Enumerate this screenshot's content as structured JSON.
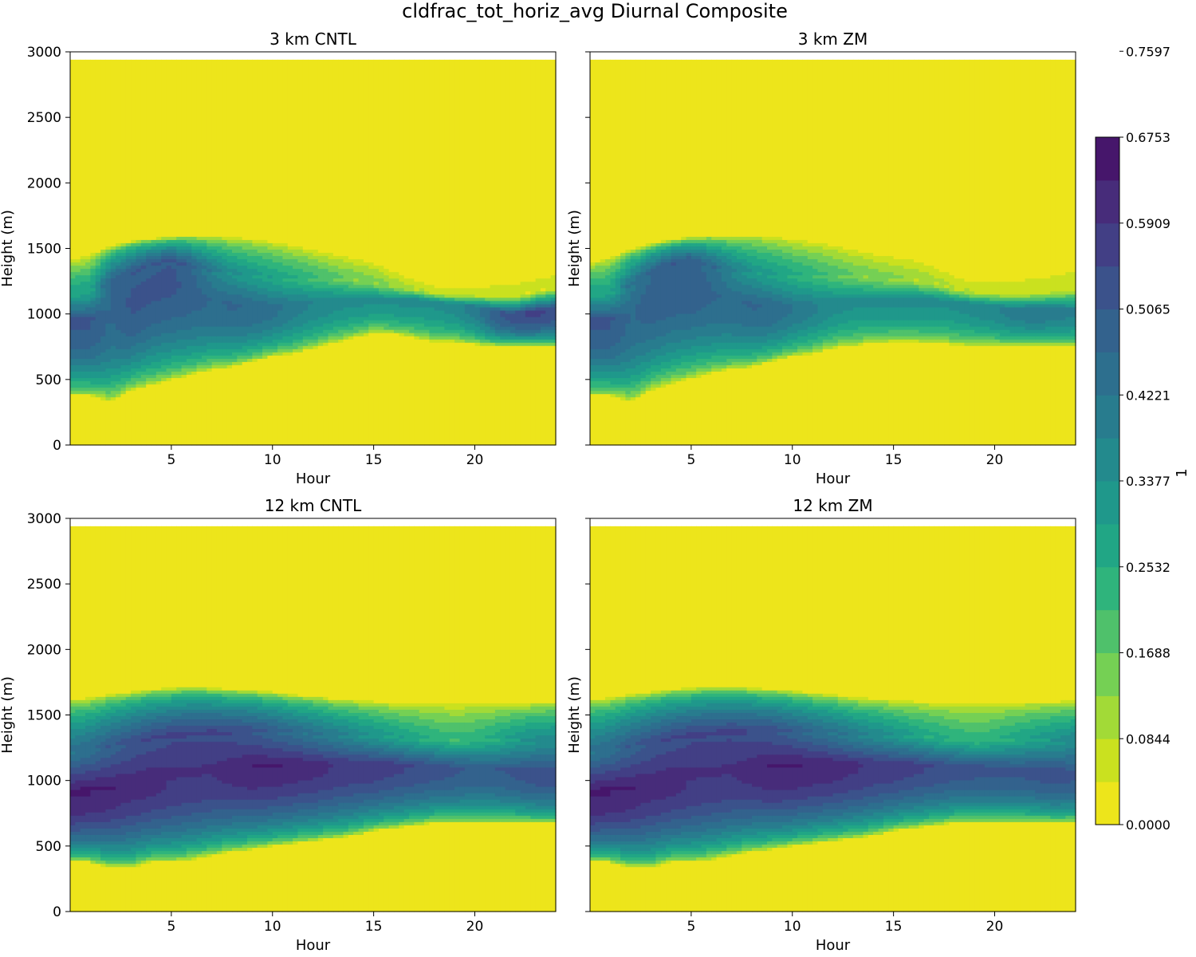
{
  "figure_title": "cldfrac_tot_horiz_avg Diurnal Composite",
  "colorbar": {
    "label": "1",
    "tick_labels": [
      "0.0000",
      "0.0844",
      "0.1688",
      "0.2532",
      "0.3377",
      "0.4221",
      "0.5065",
      "0.5909",
      "0.6753",
      "0.7597"
    ],
    "colors": [
      "#ede51b",
      "#cae11f",
      "#a2da37",
      "#75d054",
      "#4fc16b",
      "#2fb47c",
      "#21a685",
      "#1f988b",
      "#238a8d",
      "#287c8e",
      "#2d6f8e",
      "#33628d",
      "#3b528b",
      "#423f85",
      "#472c7a",
      "#46166b"
    ]
  },
  "chart_data": [
    {
      "type": "heatmap",
      "title": "3 km CNTL",
      "xlabel": "Hour",
      "ylabel": "Height (m)",
      "xlim": [
        0,
        24
      ],
      "ylim": [
        0,
        3000
      ],
      "xticks": [
        5,
        10,
        15,
        20
      ],
      "yticks": [
        0,
        500,
        1000,
        1500,
        2000,
        2500,
        3000
      ],
      "data_top": 2940,
      "value_range": [
        0,
        0.8
      ],
      "layers": [
        {
          "name": "lower_cloud",
          "base": [
            380,
            380,
            340,
            420,
            460,
            500,
            540,
            580,
            600,
            640,
            680,
            700,
            740,
            780,
            820,
            860,
            850,
            820,
            790,
            790,
            770,
            760,
            760,
            760,
            760
          ],
          "top": [
            1410,
            1460,
            1520,
            1560,
            1580,
            1590,
            1600,
            1600,
            1590,
            1580,
            1560,
            1530,
            1500,
            1470,
            1440,
            1400,
            1340,
            1290,
            1250,
            1250,
            1270,
            1300,
            1330,
            1370,
            1410
          ],
          "peak_h": [
            960,
            960,
            980,
            1080,
            1200,
            1240,
            1160,
            1100,
            1080,
            1060,
            1060,
            1080,
            1100,
            1120,
            1120,
            1120,
            1120,
            1120,
            1100,
            1080,
            1060,
            1020,
            1000,
            1020,
            1040
          ],
          "peak_v": [
            0.62,
            0.62,
            0.55,
            0.62,
            0.62,
            0.62,
            0.58,
            0.55,
            0.56,
            0.55,
            0.52,
            0.48,
            0.44,
            0.42,
            0.4,
            0.4,
            0.4,
            0.4,
            0.4,
            0.42,
            0.48,
            0.6,
            0.66,
            0.68,
            0.66
          ],
          "upper": [
            0.3,
            0.3,
            0.55,
            0.58,
            0.58,
            0.6,
            0.55,
            0.45,
            0.38,
            0.34,
            0.3,
            0.26,
            0.22,
            0.18,
            0.15,
            0.14,
            0.1,
            0.06,
            0.04,
            0.03,
            0.03,
            0.03,
            0.03,
            0.03,
            0.03
          ]
        }
      ]
    },
    {
      "type": "heatmap",
      "title": "3 km ZM",
      "xlabel": "Hour",
      "ylabel": "Height (m)",
      "xlim": [
        0,
        24
      ],
      "ylim": [
        0,
        3000
      ],
      "xticks": [
        5,
        10,
        15,
        20
      ],
      "yticks": [
        0,
        500,
        1000,
        1500,
        2000,
        2500,
        3000
      ],
      "data_top": 2940,
      "value_range": [
        0,
        0.8
      ],
      "layers": [
        {
          "name": "lower_cloud",
          "base": [
            380,
            380,
            340,
            420,
            470,
            510,
            550,
            580,
            600,
            640,
            680,
            700,
            740,
            760,
            780,
            790,
            790,
            780,
            770,
            760,
            760,
            760,
            760,
            760,
            760
          ],
          "top": [
            1400,
            1440,
            1500,
            1540,
            1570,
            1590,
            1600,
            1600,
            1610,
            1600,
            1580,
            1560,
            1540,
            1510,
            1480,
            1460,
            1440,
            1400,
            1320,
            1290,
            1300,
            1310,
            1330,
            1360,
            1400
          ],
          "peak_h": [
            960,
            960,
            980,
            1100,
            1220,
            1240,
            1160,
            1100,
            1080,
            1060,
            1060,
            1080,
            1100,
            1120,
            1120,
            1120,
            1120,
            1120,
            1100,
            1080,
            1060,
            1040,
            1040,
            1040,
            1040
          ],
          "peak_v": [
            0.62,
            0.62,
            0.55,
            0.58,
            0.6,
            0.6,
            0.56,
            0.54,
            0.56,
            0.55,
            0.5,
            0.46,
            0.42,
            0.4,
            0.4,
            0.4,
            0.4,
            0.4,
            0.4,
            0.42,
            0.44,
            0.48,
            0.5,
            0.48,
            0.46
          ],
          "upper": [
            0.3,
            0.3,
            0.48,
            0.55,
            0.57,
            0.57,
            0.52,
            0.44,
            0.36,
            0.32,
            0.28,
            0.24,
            0.2,
            0.16,
            0.14,
            0.12,
            0.1,
            0.08,
            0.06,
            0.05,
            0.05,
            0.05,
            0.05,
            0.05,
            0.05
          ]
        }
      ]
    },
    {
      "type": "heatmap",
      "title": "12 km CNTL",
      "xlabel": "Hour",
      "ylabel": "Height (m)",
      "xlim": [
        0,
        24
      ],
      "ylim": [
        0,
        3000
      ],
      "xticks": [
        5,
        10,
        15,
        20
      ],
      "yticks": [
        0,
        500,
        1000,
        1500,
        2000,
        2500,
        3000
      ],
      "data_top": 2940,
      "value_range": [
        0,
        0.8
      ],
      "layers": [
        {
          "name": "lower_cloud",
          "base": [
            380,
            380,
            340,
            340,
            380,
            380,
            400,
            430,
            460,
            480,
            500,
            520,
            540,
            560,
            580,
            620,
            640,
            660,
            680,
            680,
            680,
            680,
            680,
            680,
            680
          ],
          "top": [
            1620,
            1640,
            1660,
            1680,
            1700,
            1710,
            1720,
            1710,
            1700,
            1690,
            1680,
            1660,
            1650,
            1630,
            1620,
            1610,
            1600,
            1600,
            1600,
            1600,
            1600,
            1600,
            1600,
            1600,
            1600
          ],
          "peak_h": [
            900,
            920,
            940,
            960,
            990,
            1010,
            1030,
            1050,
            1080,
            1100,
            1110,
            1120,
            1120,
            1120,
            1120,
            1120,
            1120,
            1110,
            1110,
            1100,
            1100,
            1090,
            1080,
            1060,
            1060
          ],
          "peak_v": [
            0.78,
            0.78,
            0.76,
            0.74,
            0.74,
            0.72,
            0.72,
            0.72,
            0.74,
            0.76,
            0.76,
            0.75,
            0.74,
            0.72,
            0.7,
            0.7,
            0.68,
            0.66,
            0.64,
            0.62,
            0.6,
            0.6,
            0.62,
            0.64,
            0.64
          ],
          "upper": [
            0.48,
            0.5,
            0.56,
            0.6,
            0.62,
            0.64,
            0.64,
            0.64,
            0.62,
            0.6,
            0.56,
            0.52,
            0.48,
            0.44,
            0.4,
            0.36,
            0.32,
            0.28,
            0.24,
            0.22,
            0.24,
            0.28,
            0.34,
            0.38,
            0.4
          ]
        }
      ]
    },
    {
      "type": "heatmap",
      "title": "12 km ZM",
      "xlabel": "Hour",
      "ylabel": "Height (m)",
      "xlim": [
        0,
        24
      ],
      "ylim": [
        0,
        3000
      ],
      "xticks": [
        5,
        10,
        15,
        20
      ],
      "yticks": [
        0,
        500,
        1000,
        1500,
        2000,
        2500,
        3000
      ],
      "data_top": 2940,
      "value_range": [
        0,
        0.8
      ],
      "layers": [
        {
          "name": "lower_cloud",
          "base": [
            380,
            380,
            340,
            340,
            380,
            380,
            400,
            430,
            460,
            480,
            500,
            520,
            540,
            560,
            580,
            620,
            640,
            660,
            680,
            680,
            680,
            680,
            680,
            680,
            680
          ],
          "top": [
            1620,
            1640,
            1660,
            1680,
            1700,
            1710,
            1720,
            1720,
            1710,
            1700,
            1690,
            1670,
            1660,
            1640,
            1630,
            1620,
            1610,
            1610,
            1610,
            1610,
            1610,
            1610,
            1610,
            1610,
            1610
          ],
          "peak_h": [
            900,
            920,
            940,
            960,
            990,
            1010,
            1030,
            1050,
            1080,
            1100,
            1110,
            1120,
            1120,
            1120,
            1120,
            1120,
            1120,
            1110,
            1110,
            1100,
            1100,
            1090,
            1080,
            1060,
            1060
          ],
          "peak_v": [
            0.78,
            0.78,
            0.76,
            0.74,
            0.74,
            0.72,
            0.72,
            0.72,
            0.74,
            0.77,
            0.77,
            0.76,
            0.75,
            0.73,
            0.71,
            0.7,
            0.68,
            0.66,
            0.64,
            0.63,
            0.62,
            0.62,
            0.63,
            0.64,
            0.62
          ],
          "upper": [
            0.48,
            0.5,
            0.56,
            0.6,
            0.62,
            0.64,
            0.64,
            0.64,
            0.62,
            0.6,
            0.56,
            0.52,
            0.48,
            0.44,
            0.4,
            0.36,
            0.32,
            0.28,
            0.24,
            0.22,
            0.24,
            0.28,
            0.32,
            0.36,
            0.4
          ]
        }
      ]
    }
  ]
}
